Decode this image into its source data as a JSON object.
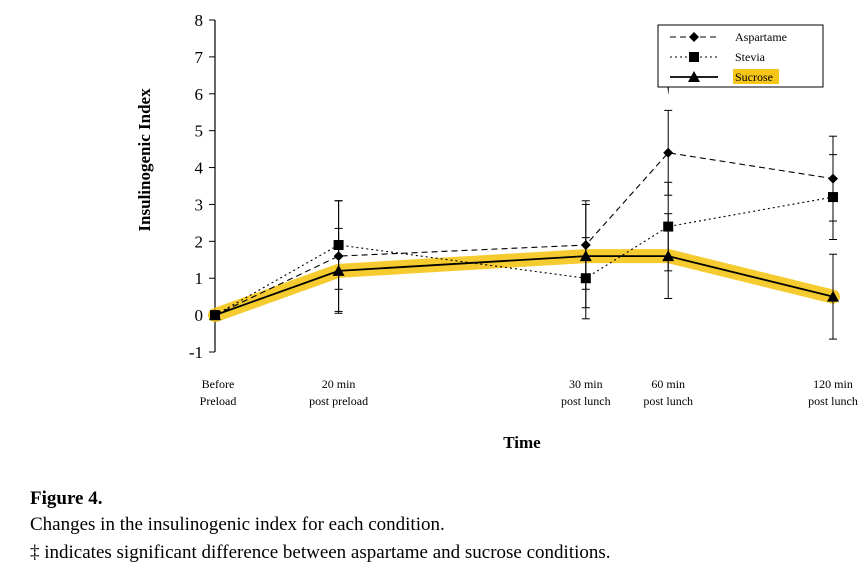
{
  "chart_data": {
    "type": "line",
    "ylabel": "Insulinogenic Index",
    "xlabel": "Time",
    "ylim": [
      -1,
      8
    ],
    "yticks": [
      -1,
      0,
      1,
      2,
      3,
      4,
      5,
      6,
      7,
      8
    ],
    "categories": [
      {
        "line1": "Before",
        "line2": "Preload",
        "x_minutes": -10
      },
      {
        "line1": "20 min",
        "line2": "post preload",
        "x_minutes": 20
      },
      {
        "line1": "30 min",
        "line2": "post lunch",
        "x_minutes": 80
      },
      {
        "line1": "60 min",
        "line2": "post lunch",
        "x_minutes": 100
      },
      {
        "line1": "120 min",
        "line2": "post lunch",
        "x_minutes": 140
      }
    ],
    "series": [
      {
        "name": "Aspartame",
        "marker": "diamond",
        "dash": "dashed",
        "values": [
          0,
          1.6,
          1.9,
          4.4,
          3.7
        ],
        "errors": [
          0,
          1.5,
          1.2,
          1.15,
          1.15
        ]
      },
      {
        "name": "Stevia",
        "marker": "square",
        "dash": "dotted",
        "values": [
          0,
          1.9,
          1.0,
          2.4,
          3.2
        ],
        "errors": [
          0,
          1.2,
          1.1,
          1.2,
          1.15
        ]
      },
      {
        "name": "Sucrose",
        "marker": "triangle",
        "dash": "solid",
        "highlight": "#f5c518",
        "values": [
          0,
          1.2,
          1.6,
          1.6,
          0.5
        ],
        "errors": [
          0,
          1.15,
          1.4,
          1.15,
          1.15
        ]
      }
    ],
    "annotations": [
      {
        "text": "†",
        "category_index": 3,
        "y": 6.0
      }
    ],
    "legend_position": "top-right",
    "grid": false
  },
  "caption": {
    "title": "Figure 4.",
    "line1": "Changes in the insulinogenic index for each condition.",
    "line2": "‡ indicates significant difference between aspartame and sucrose conditions."
  },
  "colors": {
    "highlight": "#f5c518",
    "ink": "#000000"
  }
}
